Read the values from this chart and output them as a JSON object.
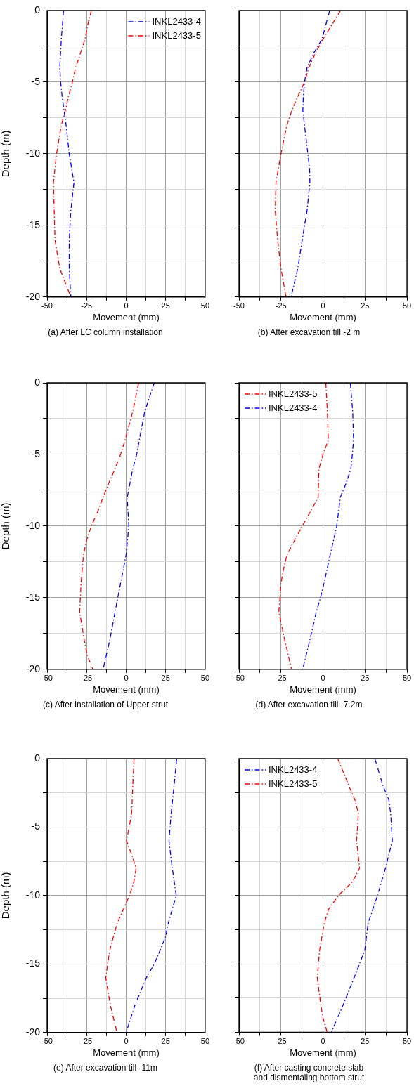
{
  "chart_data": [
    {
      "type": "line",
      "title": "(a) After LC column installation",
      "xlabel": "Movement (mm)",
      "ylabel": "Depth (m)",
      "xlim": [
        -50,
        50
      ],
      "ylim": [
        -20,
        0
      ],
      "xticks": [
        -50,
        {
          "value": -37.5,
          "label": null
        },
        -25,
        {
          "value": -12.5,
          "label": null
        },
        0,
        {
          "value": 12.5,
          "label": null
        },
        25,
        {
          "value": 37.5,
          "label": null
        },
        50
      ],
      "yticks": [
        -20,
        {
          "value": -17.5,
          "label": null
        },
        -15,
        {
          "value": -12.5,
          "label": null
        },
        -10,
        {
          "value": -7.5,
          "label": null
        },
        -5,
        {
          "value": -2.5,
          "label": null
        },
        0
      ],
      "grid": true,
      "legend": "top right",
      "marker": "none",
      "line_style": "dashed",
      "series": [
        {
          "name": "INKL2433-4",
          "color": "#0000ff",
          "x": [
            -39.6,
            -41,
            -42,
            -41.4,
            -40.5,
            -39,
            -38,
            -36,
            -33,
            -35,
            -36,
            -36,
            -35
          ],
          "values": [
            0,
            -2,
            -4,
            -5,
            -6,
            -7.2,
            -8,
            -10,
            -12,
            -14,
            -16,
            -18,
            -20
          ]
        },
        {
          "name": "INKL2433-5",
          "color": "#ff0000",
          "x": [
            -22,
            -24.3,
            -26,
            -32,
            -34,
            -36.5,
            -38.5,
            -41,
            -44,
            -46,
            -45.5,
            -45,
            -42,
            -35
          ],
          "values": [
            0,
            -1,
            -2,
            -4,
            -5,
            -6,
            -7,
            -8,
            -10,
            -12,
            -14,
            -16,
            -18,
            -20
          ]
        }
      ]
    },
    {
      "type": "line",
      "title": "(b) After excavation till -2 m",
      "xlabel": "Movement (mm)",
      "xlim": [
        -50,
        50
      ],
      "ylim": [
        -20,
        0
      ],
      "xticks": [
        -50,
        {
          "value": -37.5,
          "label": null
        },
        -25,
        {
          "value": -12.5,
          "label": null
        },
        0,
        {
          "value": 12.5,
          "label": null
        },
        25,
        {
          "value": 37.5,
          "label": null
        },
        50
      ],
      "yticks": [
        -20,
        {
          "value": -17.5,
          "label": null
        },
        -15,
        {
          "value": -12.5,
          "label": null
        },
        -10,
        {
          "value": -7.5,
          "label": null
        },
        -5,
        {
          "value": -2.5,
          "label": null
        },
        0
      ],
      "grid": true,
      "tick_labels": "x",
      "marker": "none",
      "line_style": "dashed",
      "series": [
        {
          "color": "#0000ff",
          "x": [
            4,
            -0.6,
            -5.7,
            -9.5,
            -11,
            -11.7,
            -12,
            -11,
            -9,
            -8,
            -7.8,
            -9.5,
            -11,
            -12.3,
            -15,
            -19
          ],
          "values": [
            0,
            -2,
            -3,
            -4,
            -5,
            -6,
            -7,
            -8,
            -10,
            -11,
            -12,
            -14,
            -15,
            -16,
            -18,
            -20
          ]
        },
        {
          "color": "#ff0000",
          "x": [
            10.5,
            0,
            -4.6,
            -8.5,
            -11,
            -15,
            -18.6,
            -21.5,
            -25,
            -28,
            -28.4,
            -27.7,
            -27,
            -25,
            -22
          ],
          "values": [
            0,
            -2,
            -3,
            -4,
            -5,
            -6,
            -7,
            -8,
            -10,
            -12,
            -14,
            -15,
            -16,
            -18,
            -20
          ]
        }
      ]
    },
    {
      "type": "line",
      "title": "(c) After installation of Upper strut",
      "xlabel": "Movement (mm)",
      "ylabel": "Depth (m)",
      "xlim": [
        -50,
        50
      ],
      "ylim": [
        -20,
        0
      ],
      "xticks": [
        -50,
        {
          "value": -37.5,
          "label": null
        },
        -25,
        {
          "value": -12.5,
          "label": null
        },
        0,
        {
          "value": 12.5,
          "label": null
        },
        25,
        {
          "value": 37.5,
          "label": null
        },
        50
      ],
      "yticks": [
        -20,
        {
          "value": -17.5,
          "label": null
        },
        -15,
        {
          "value": -12.5,
          "label": null
        },
        -10,
        {
          "value": -7.5,
          "label": null
        },
        -5,
        {
          "value": -2.5,
          "label": null
        },
        0
      ],
      "grid": true,
      "marker": "none",
      "line_style": "dashed",
      "series": [
        {
          "color": "#0000ff",
          "x": [
            17.8,
            11.8,
            8.3,
            6.7,
            4.2,
            0.7,
            1.7,
            0,
            -3.5,
            -5.3,
            -7,
            -10.4,
            -14.6
          ],
          "values": [
            0,
            -2,
            -4,
            -5,
            -6,
            -8,
            -10,
            -12,
            -14,
            -15,
            -16,
            -18,
            -20
          ]
        },
        {
          "color": "#ff0000",
          "x": [
            7.9,
            4.2,
            -0.7,
            -3.5,
            -7,
            -11,
            -14.6,
            -18,
            -22,
            -25,
            -27,
            -28.5,
            -29.4,
            -26.4,
            -24.7,
            -21
          ],
          "values": [
            0,
            -2,
            -4,
            -5,
            -6,
            -7,
            -8,
            -9,
            -10,
            -11,
            -12,
            -14,
            -16,
            -18,
            -19,
            -20
          ]
        }
      ]
    },
    {
      "type": "line",
      "title": "(d) After excavation till -7.2m",
      "xlabel": "Movement (mm)",
      "xlim": [
        -50,
        50
      ],
      "ylim": [
        -20,
        0
      ],
      "xticks": [
        -50,
        {
          "value": -37.5,
          "label": null
        },
        -25,
        {
          "value": -12.5,
          "label": null
        },
        0,
        {
          "value": 12.5,
          "label": null
        },
        25,
        {
          "value": 37.5,
          "label": null
        },
        50
      ],
      "yticks": [
        -20,
        {
          "value": -17.5,
          "label": null
        },
        -15,
        {
          "value": -12.5,
          "label": null
        },
        -10,
        {
          "value": -7.5,
          "label": null
        },
        -5,
        {
          "value": -2.5,
          "label": null
        },
        0
      ],
      "grid": true,
      "tick_labels": "x",
      "legend": "top left",
      "marker": "none",
      "line_style": "dashed",
      "series": [
        {
          "name": "INKL2433-5",
          "color": "#ff0000",
          "x": [
            1.7,
            2.6,
            3.2,
            0,
            -2.4,
            -2.9,
            -7.5,
            -12.4,
            -21.4,
            -23.5,
            -25,
            -25.6,
            -26.3,
            -22.7,
            -18.7
          ],
          "values": [
            0,
            -2,
            -4,
            -5,
            -6,
            -8,
            -9,
            -10,
            -12,
            -13,
            -14,
            -15,
            -16,
            -18,
            -20
          ]
        },
        {
          "name": "INKL2433-4",
          "color": "#0000ff",
          "x": [
            16.3,
            17.7,
            18.2,
            17.5,
            16.6,
            13.8,
            10.3,
            8.2,
            4.3,
            0.6,
            -1.5,
            -4,
            -7.9,
            -12.1
          ],
          "values": [
            0,
            -2,
            -4,
            -5,
            -6,
            -7,
            -8,
            -10,
            -12,
            -14,
            -15,
            -16,
            -18,
            -20
          ]
        }
      ]
    },
    {
      "type": "line",
      "title": "(e) After excavation till -11m",
      "xlabel": "Movement (mm)",
      "ylabel": "Depth (m)",
      "xlim": [
        -50,
        50
      ],
      "ylim": [
        -20,
        0
      ],
      "xticks": [
        -50,
        {
          "value": -37.5,
          "label": null
        },
        -25,
        {
          "value": -12.5,
          "label": null
        },
        0,
        {
          "value": 12.5,
          "label": null
        },
        25,
        {
          "value": 37.5,
          "label": null
        },
        50
      ],
      "yticks": [
        -20,
        {
          "value": -17.5,
          "label": null
        },
        -15,
        {
          "value": -12.5,
          "label": null
        },
        -10,
        {
          "value": -7.5,
          "label": null
        },
        -5,
        {
          "value": -2.5,
          "label": null
        },
        0
      ],
      "grid": true,
      "marker": "none",
      "line_style": "dashed",
      "series": [
        {
          "color": "#ff0000",
          "x": [
            5,
            4.2,
            3.5,
            0.3,
            3.5,
            6.3,
            4.9,
            2.1,
            -1.7,
            -5.6,
            -10.4,
            -12.9,
            -10,
            -5.8
          ],
          "values": [
            0,
            -2,
            -4,
            -6,
            -7,
            -8,
            -9,
            -10,
            -11,
            -12,
            -14,
            -16,
            -18,
            -20
          ]
        },
        {
          "color": "#0000ff",
          "x": [
            32,
            30.3,
            28.5,
            27.1,
            29.2,
            31.7,
            26.7,
            25,
            21.5,
            17.8,
            12.8,
            5.6,
            0
          ],
          "values": [
            0,
            -2,
            -4,
            -6,
            -8,
            -10,
            -12,
            -13,
            -14,
            -15,
            -16,
            -18,
            -20
          ]
        }
      ]
    },
    {
      "type": "line",
      "title": "(f) After casting concrete slab\nand dismentaling bottom strut",
      "xlabel": "Movement (mm)",
      "xlim": [
        -50,
        50
      ],
      "ylim": [
        -20,
        0
      ],
      "xticks": [
        -50,
        {
          "value": -37.5,
          "label": null
        },
        -25,
        {
          "value": -12.5,
          "label": null
        },
        0,
        {
          "value": 12.5,
          "label": null
        },
        25,
        {
          "value": 37.5,
          "label": null
        },
        50
      ],
      "yticks": [
        -20,
        {
          "value": -17.5,
          "label": null
        },
        -15,
        {
          "value": -12.5,
          "label": null
        },
        -10,
        {
          "value": -7.5,
          "label": null
        },
        -5,
        {
          "value": -2.5,
          "label": null
        },
        0
      ],
      "grid": true,
      "tick_labels": "x",
      "legend": "top left",
      "marker": "none",
      "line_style": "dashed",
      "series": [
        {
          "name": "INKL2433-4",
          "color": "#0000ff",
          "x": [
            30.9,
            35.8,
            39.2,
            40.3,
            41.3,
            37.2,
            32.5,
            26.9,
            24.9,
            18.6,
            12,
            5
          ],
          "values": [
            0,
            -2,
            -3,
            -4,
            -6,
            -8,
            -10,
            -12,
            -14,
            -16,
            -18,
            -20
          ]
        },
        {
          "name": "INKL2433-5",
          "color": "#ff0000",
          "x": [
            8.8,
            15.5,
            19,
            21.1,
            20,
            21.8,
            17.6,
            9.2,
            3.4,
            0.8,
            -2,
            -3.4,
            -1.3,
            0.1,
            2.5
          ],
          "values": [
            0,
            -2,
            -3,
            -4,
            -6,
            -8,
            -9,
            -10,
            -11,
            -12,
            -14,
            -16,
            -18,
            -19,
            -20
          ]
        }
      ]
    }
  ]
}
